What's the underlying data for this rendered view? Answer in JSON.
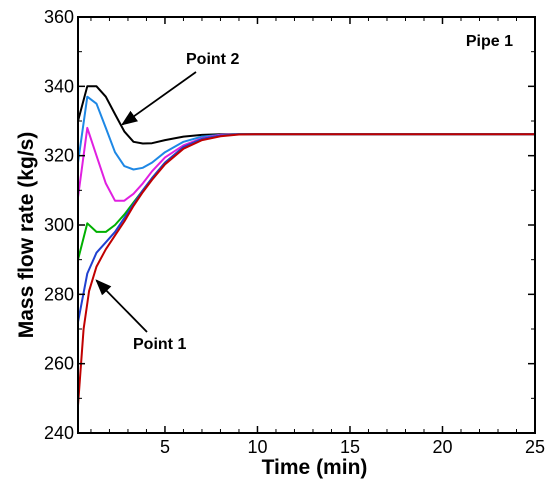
{
  "chart_data": {
    "type": "line",
    "title": "",
    "xlabel": "Time (min)",
    "ylabel": "Mass flow rate (kg/s)",
    "xlim": [
      0.3,
      25
    ],
    "ylim": [
      240,
      360
    ],
    "xticks": [
      5,
      10,
      15,
      20,
      25
    ],
    "yticks": [
      240,
      260,
      280,
      300,
      320,
      340,
      360
    ],
    "grid": false,
    "legend": "none",
    "annotations": [
      {
        "text": "Pipe 1"
      },
      {
        "text": "Point 2",
        "points_to": {
          "x": 2.7,
          "y": 329
        }
      },
      {
        "text": "Point 1",
        "points_to": {
          "x": 1.3,
          "y": 284
        }
      }
    ],
    "series": [
      {
        "color": "#000000",
        "x": [
          0.3,
          0.8,
          1.3,
          1.8,
          2.3,
          2.8,
          3.3,
          3.8,
          4.3,
          5,
          6,
          7,
          8,
          9,
          10,
          25
        ],
        "y": [
          330,
          340,
          340,
          337,
          332,
          327,
          324,
          323.5,
          323.6,
          324.5,
          325.5,
          326,
          326.2,
          326.2,
          326.2,
          326.2
        ]
      },
      {
        "color": "#1E88E5",
        "x": [
          0.3,
          0.8,
          1.3,
          1.8,
          2.3,
          2.8,
          3.3,
          3.8,
          4.3,
          5,
          6,
          7,
          8,
          9,
          10,
          25
        ],
        "y": [
          318,
          337,
          335,
          328,
          321,
          317,
          316,
          316.5,
          318,
          321,
          324,
          325.5,
          326,
          326.2,
          326.2,
          326.2
        ]
      },
      {
        "color": "#E020E0",
        "x": [
          0.3,
          0.8,
          1.3,
          1.8,
          2.3,
          2.8,
          3.3,
          3.8,
          4.3,
          5,
          6,
          7,
          8,
          9,
          10,
          25
        ],
        "y": [
          308,
          328,
          320,
          312,
          307,
          307,
          309,
          312,
          315.5,
          319.5,
          323,
          325,
          326,
          326.2,
          326.2,
          326.2
        ]
      },
      {
        "color": "#00B000",
        "x": [
          0.3,
          0.8,
          1.3,
          1.8,
          2.3,
          2.8,
          3.3,
          3.8,
          4.3,
          5,
          6,
          7,
          8,
          9,
          10,
          25
        ],
        "y": [
          290,
          300.5,
          298,
          298,
          300,
          303,
          306.5,
          310,
          313.5,
          318,
          322.5,
          324.8,
          325.8,
          326.2,
          326.2,
          326.2
        ]
      },
      {
        "color": "#2040D0",
        "x": [
          0.3,
          0.8,
          1.3,
          1.8,
          2.3,
          2.8,
          3.3,
          3.8,
          4.3,
          5,
          6,
          7,
          8,
          9,
          10,
          25
        ],
        "y": [
          272,
          286,
          292,
          295,
          298,
          302,
          306,
          310,
          313.5,
          318,
          322.5,
          324.8,
          325.8,
          326.2,
          326.2,
          326.2
        ]
      },
      {
        "color": "#C00000",
        "x": [
          0.3,
          0.6,
          0.9,
          1.3,
          1.8,
          2.3,
          2.8,
          3.3,
          3.8,
          4.3,
          5,
          6,
          7,
          8,
          9,
          10,
          25
        ],
        "y": [
          248,
          270,
          281,
          288,
          293,
          297,
          301,
          305.5,
          309.5,
          313,
          317.5,
          322,
          324.5,
          325.6,
          326.1,
          326.2,
          326.2
        ]
      }
    ]
  }
}
